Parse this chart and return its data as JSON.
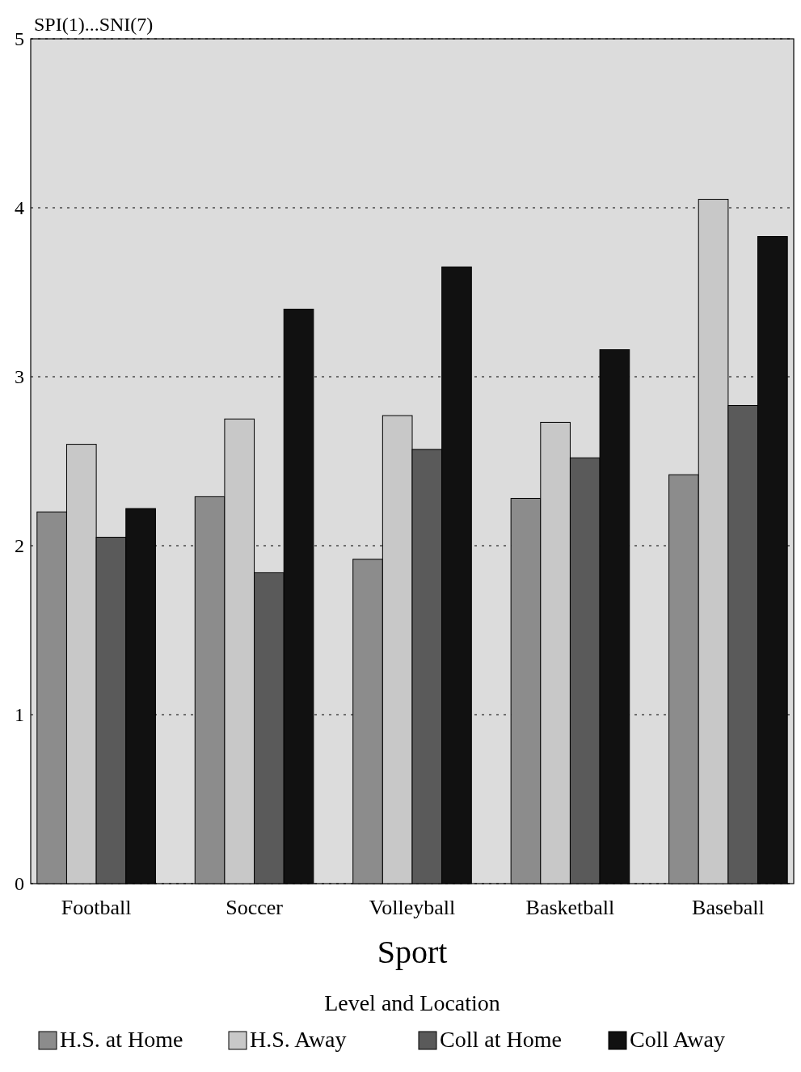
{
  "chart_data": {
    "type": "bar",
    "ylabel": "SPI(1)...SNI(7)",
    "xlabel": "Sport",
    "legend_title": "Level and Location",
    "categories": [
      "Football",
      "Soccer",
      "Volleyball",
      "Basketball",
      "Baseball"
    ],
    "series": [
      {
        "name": "H.S. at Home",
        "color": "#8c8c8c",
        "values": [
          2.2,
          2.29,
          1.92,
          2.28,
          2.42
        ]
      },
      {
        "name": "H.S. Away",
        "color": "#c8c8c8",
        "values": [
          2.6,
          2.75,
          2.77,
          2.73,
          4.05
        ]
      },
      {
        "name": "Coll at Home",
        "color": "#5a5a5a",
        "values": [
          2.05,
          1.84,
          2.57,
          2.52,
          2.83
        ]
      },
      {
        "name": "Coll Away",
        "color": "#111111",
        "values": [
          2.22,
          3.4,
          3.65,
          3.16,
          3.83
        ]
      }
    ],
    "ylim": [
      0,
      5
    ],
    "yticks": [
      0,
      1,
      2,
      3,
      4,
      5
    ],
    "grid": "y",
    "legend": "bottom"
  }
}
